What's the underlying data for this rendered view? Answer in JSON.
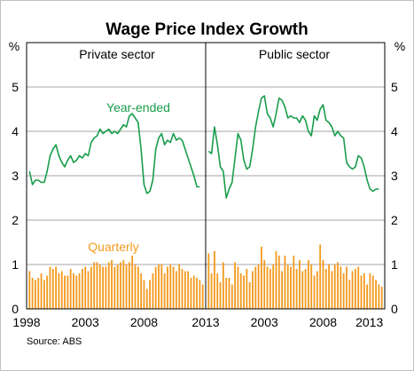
{
  "title": "Wage Price Index Growth",
  "source": "Source: ABS",
  "unit_left": "%",
  "unit_right": "%",
  "colors": {
    "year_ended": "#1a9d4c",
    "quarterly": "#f39a1f",
    "grid": "#a6a6a6",
    "frame": "#000000"
  },
  "chart_data": [
    {
      "type": "line",
      "panel_title": "Private sector",
      "ylim": [
        0,
        6
      ],
      "yticks": [
        0,
        1,
        2,
        3,
        4,
        5
      ],
      "xlim": [
        1998,
        2013.25
      ],
      "xticks": [
        1998,
        2003,
        2008,
        2013
      ],
      "grid": true,
      "annotations": [
        {
          "text": "Year-ended",
          "series": "year_ended"
        },
        {
          "text": "Quarterly",
          "series": "quarterly"
        }
      ],
      "series": [
        {
          "key": "year_ended",
          "type": "line",
          "x": [
            1998.25,
            1998.5,
            1998.75,
            1999,
            1999.25,
            1999.5,
            1999.75,
            2000,
            2000.25,
            2000.5,
            2000.75,
            2001,
            2001.25,
            2001.5,
            2001.75,
            2002,
            2002.25,
            2002.5,
            2002.75,
            2003,
            2003.25,
            2003.5,
            2003.75,
            2004,
            2004.25,
            2004.5,
            2004.75,
            2005,
            2005.25,
            2005.5,
            2005.75,
            2006,
            2006.25,
            2006.5,
            2006.75,
            2007,
            2007.25,
            2007.5,
            2007.75,
            2008,
            2008.25,
            2008.5,
            2008.75,
            2009,
            2009.25,
            2009.5,
            2009.75,
            2010,
            2010.25,
            2010.5,
            2010.75,
            2011,
            2011.25,
            2011.5,
            2011.75,
            2012,
            2012.25,
            2012.5,
            2012.75
          ],
          "values": [
            3.1,
            2.8,
            2.9,
            2.9,
            2.85,
            2.85,
            3.1,
            3.45,
            3.6,
            3.7,
            3.45,
            3.3,
            3.2,
            3.35,
            3.45,
            3.3,
            3.35,
            3.45,
            3.4,
            3.5,
            3.45,
            3.75,
            3.85,
            3.9,
            4.05,
            3.95,
            4.0,
            4.05,
            3.95,
            4.0,
            3.95,
            4.05,
            4.15,
            4.1,
            4.35,
            4.4,
            4.3,
            4.2,
            3.6,
            2.8,
            2.6,
            2.65,
            2.9,
            3.6,
            3.85,
            3.95,
            3.7,
            3.8,
            3.75,
            3.95,
            3.8,
            3.85,
            3.8,
            3.6,
            3.4,
            3.2,
            3.0,
            2.75,
            2.75
          ]
        },
        {
          "key": "quarterly",
          "type": "bar",
          "x": [
            1998.25,
            1998.5,
            1998.75,
            1999,
            1999.25,
            1999.5,
            1999.75,
            2000,
            2000.25,
            2000.5,
            2000.75,
            2001,
            2001.25,
            2001.5,
            2001.75,
            2002,
            2002.25,
            2002.5,
            2002.75,
            2003,
            2003.25,
            2003.5,
            2003.75,
            2004,
            2004.25,
            2004.5,
            2004.75,
            2005,
            2005.25,
            2005.5,
            2005.75,
            2006,
            2006.25,
            2006.5,
            2006.75,
            2007,
            2007.25,
            2007.5,
            2007.75,
            2008,
            2008.25,
            2008.5,
            2008.75,
            2009,
            2009.25,
            2009.5,
            2009.75,
            2010,
            2010.25,
            2010.5,
            2010.75,
            2011,
            2011.25,
            2011.5,
            2011.75,
            2012,
            2012.25,
            2012.5,
            2012.75,
            2013
          ],
          "values": [
            0.85,
            0.7,
            0.65,
            0.7,
            0.8,
            0.65,
            0.75,
            0.95,
            0.9,
            0.95,
            0.8,
            0.85,
            0.75,
            0.75,
            0.9,
            0.8,
            0.75,
            0.8,
            0.9,
            0.95,
            0.85,
            0.95,
            1.05,
            1.05,
            1.0,
            0.95,
            0.95,
            1.05,
            1.1,
            0.95,
            1.0,
            1.05,
            1.1,
            1.0,
            1.05,
            1.2,
            1.0,
            0.95,
            0.8,
            0.65,
            0.45,
            0.65,
            0.8,
            0.95,
            1.0,
            1.0,
            0.8,
            0.95,
            1.0,
            0.95,
            0.85,
            1.0,
            0.9,
            0.85,
            0.85,
            0.7,
            0.75,
            0.7,
            0.65,
            0.55
          ]
        }
      ]
    },
    {
      "type": "line",
      "panel_title": "Public sector",
      "ylim": [
        0,
        6
      ],
      "yticks": [
        0,
        1,
        2,
        3,
        4,
        5
      ],
      "xlim": [
        1998,
        2013.25
      ],
      "xticks": [
        2003,
        2008,
        2013
      ],
      "grid": true,
      "series": [
        {
          "key": "year_ended",
          "type": "line",
          "x": [
            1998.25,
            1998.5,
            1998.75,
            1999,
            1999.25,
            1999.5,
            1999.75,
            2000,
            2000.25,
            2000.5,
            2000.75,
            2001,
            2001.25,
            2001.5,
            2001.75,
            2002,
            2002.25,
            2002.5,
            2002.75,
            2003,
            2003.25,
            2003.5,
            2003.75,
            2004,
            2004.25,
            2004.5,
            2004.75,
            2005,
            2005.25,
            2005.5,
            2005.75,
            2006,
            2006.25,
            2006.5,
            2006.75,
            2007,
            2007.25,
            2007.5,
            2007.75,
            2008,
            2008.25,
            2008.5,
            2008.75,
            2009,
            2009.25,
            2009.5,
            2009.75,
            2010,
            2010.25,
            2010.5,
            2010.75,
            2011,
            2011.25,
            2011.5,
            2011.75,
            2012,
            2012.25,
            2012.5,
            2012.75
          ],
          "values": [
            3.55,
            3.5,
            4.1,
            3.7,
            3.2,
            3.1,
            2.5,
            2.7,
            2.85,
            3.4,
            3.95,
            3.8,
            3.35,
            3.15,
            3.2,
            3.6,
            4.1,
            4.45,
            4.75,
            4.8,
            4.4,
            4.3,
            4.1,
            4.4,
            4.75,
            4.7,
            4.55,
            4.3,
            4.35,
            4.3,
            4.3,
            4.2,
            4.35,
            4.25,
            4.0,
            3.9,
            4.35,
            4.25,
            4.5,
            4.6,
            4.25,
            4.2,
            4.1,
            3.9,
            4.0,
            3.9,
            3.85,
            3.3,
            3.2,
            3.15,
            3.2,
            3.45,
            3.4,
            3.2,
            2.9,
            2.7,
            2.65,
            2.7,
            2.7
          ]
        },
        {
          "key": "quarterly",
          "type": "bar",
          "x": [
            1998.25,
            1998.5,
            1998.75,
            1999,
            1999.25,
            1999.5,
            1999.75,
            2000,
            2000.25,
            2000.5,
            2000.75,
            2001,
            2001.25,
            2001.5,
            2001.75,
            2002,
            2002.25,
            2002.5,
            2002.75,
            2003,
            2003.25,
            2003.5,
            2003.75,
            2004,
            2004.25,
            2004.5,
            2004.75,
            2005,
            2005.25,
            2005.5,
            2005.75,
            2006,
            2006.25,
            2006.5,
            2006.75,
            2007,
            2007.25,
            2007.5,
            2007.75,
            2008,
            2008.25,
            2008.5,
            2008.75,
            2009,
            2009.25,
            2009.5,
            2009.75,
            2010,
            2010.25,
            2010.5,
            2010.75,
            2011,
            2011.25,
            2011.5,
            2011.75,
            2012,
            2012.25,
            2012.5,
            2012.75,
            2013
          ],
          "values": [
            1.25,
            0.8,
            1.3,
            0.8,
            0.6,
            1.05,
            0.7,
            0.7,
            0.55,
            1.05,
            0.95,
            0.8,
            0.75,
            0.9,
            0.6,
            0.85,
            0.95,
            1.0,
            1.4,
            1.1,
            0.95,
            0.9,
            1.0,
            1.3,
            1.2,
            0.85,
            1.2,
            1.0,
            0.95,
            1.2,
            0.9,
            1.1,
            0.85,
            0.9,
            1.1,
            1.0,
            0.75,
            0.85,
            1.45,
            1.1,
            0.9,
            1.0,
            0.85,
            1.0,
            1.05,
            0.95,
            0.8,
            0.95,
            0.65,
            0.85,
            0.9,
            0.95,
            0.75,
            0.8,
            0.55,
            0.8,
            0.75,
            0.65,
            0.55,
            0.5
          ]
        }
      ]
    }
  ],
  "labels": {
    "yticks": [
      "0",
      "1",
      "2",
      "3",
      "4",
      "5"
    ],
    "xticks_left": [
      "1998",
      "2003",
      "2008"
    ],
    "xtick_shared": "2013",
    "xticks_right": [
      "2003",
      "2008",
      "2013"
    ]
  }
}
